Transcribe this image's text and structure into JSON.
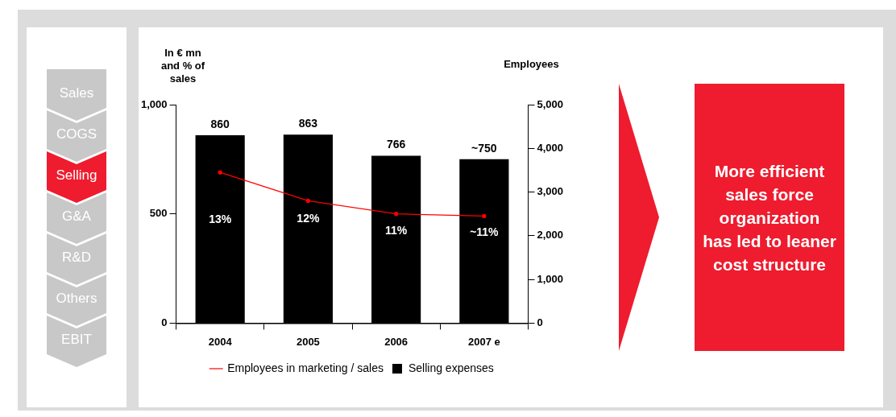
{
  "chart_data": {
    "type": "bar",
    "ylabel": "In € mn and % of sales",
    "y2label": "Employees",
    "categories": [
      "2004",
      "2005",
      "2006",
      "2007 e"
    ],
    "series": [
      {
        "name": "Selling expenses",
        "color": "#000000",
        "values": [
          860,
          863,
          766,
          750
        ],
        "value_labels": [
          "860",
          "863",
          "766",
          "~750"
        ]
      },
      {
        "name": "Employees in marketing / sales",
        "type": "line",
        "axis": "y2",
        "color": "#ff0000",
        "values": [
          3450,
          2800,
          2500,
          2450
        ]
      }
    ],
    "ylim": [
      0,
      1000
    ],
    "yticks": [
      0,
      500,
      {
        "value": 1000,
        "label": "1,000"
      }
    ],
    "y2lim": [
      0,
      5000
    ],
    "y2ticks": [
      0,
      {
        "value": 1000,
        "label": "1,000"
      },
      {
        "value": 2000,
        "label": "2,000"
      },
      {
        "value": 3000,
        "label": "3,000"
      },
      {
        "value": 4000,
        "label": "4,000"
      },
      {
        "value": 5000,
        "label": "5,000"
      }
    ],
    "grid": false,
    "legend": "bottom",
    "marker": "circle",
    "line_style": "solid",
    "annotations": [
      "13%",
      "12%",
      "11%",
      "~11%",
      "Sales",
      "COGS",
      "Selling",
      "G&A",
      "R&D",
      "Others",
      "EBIT",
      "More efficient sales force organization has led to leaner cost structure"
    ]
  }
}
